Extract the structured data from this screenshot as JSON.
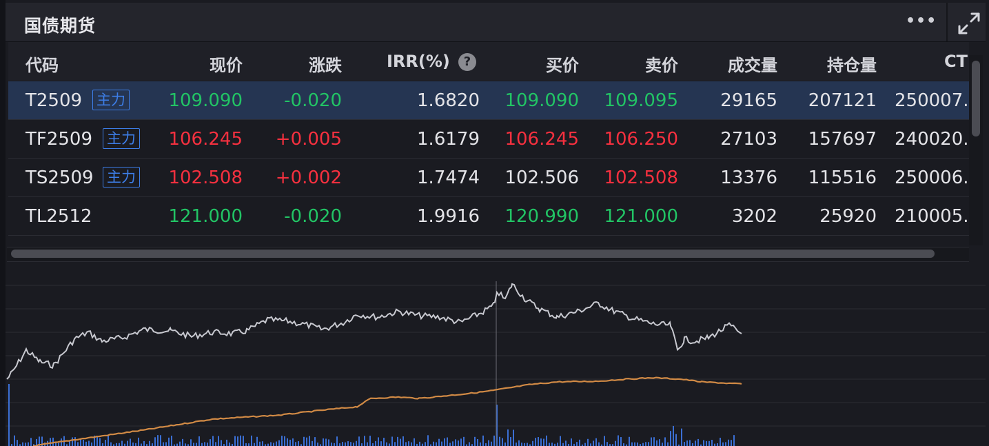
{
  "panel": {
    "title": "国债期货",
    "more_label": "•••"
  },
  "table": {
    "columns": {
      "code": "代码",
      "price": "现价",
      "change": "涨跌",
      "irr": "IRR(%)",
      "bid": "买价",
      "ask": "卖价",
      "volume": "成交量",
      "open_interest": "持仓量",
      "ctd": "CT"
    },
    "help_glyph": "?",
    "rows": [
      {
        "code": "T2509",
        "badge": "主力",
        "price": "109.090",
        "price_dir": "down",
        "change": "-0.020",
        "change_dir": "down",
        "irr": "1.6820",
        "bid": "109.090",
        "bid_dir": "down",
        "ask": "109.095",
        "ask_dir": "down",
        "volume": "29165",
        "open_interest": "207121",
        "ctd": "250007.",
        "selected": true
      },
      {
        "code": "TF2509",
        "badge": "主力",
        "price": "106.245",
        "price_dir": "up",
        "change": "+0.005",
        "change_dir": "up",
        "irr": "1.6179",
        "bid": "106.245",
        "bid_dir": "up",
        "ask": "106.250",
        "ask_dir": "up",
        "volume": "27103",
        "open_interest": "157697",
        "ctd": "240020.",
        "selected": false
      },
      {
        "code": "TS2509",
        "badge": "主力",
        "price": "102.508",
        "price_dir": "up",
        "change": "+0.002",
        "change_dir": "up",
        "irr": "1.7474",
        "bid": "102.506",
        "bid_dir": "neutral",
        "ask": "102.508",
        "ask_dir": "up",
        "volume": "13376",
        "open_interest": "115516",
        "ctd": "250006.",
        "selected": false
      },
      {
        "code": "TL2512",
        "badge": "",
        "price": "121.000",
        "price_dir": "down",
        "change": "-0.020",
        "change_dir": "down",
        "irr": "1.9916",
        "bid": "120.990",
        "bid_dir": "down",
        "ask": "121.000",
        "ask_dir": "down",
        "volume": "3202",
        "open_interest": "25920",
        "ctd": "210005.",
        "selected": false
      }
    ]
  },
  "colors": {
    "up": "#f6303f",
    "down": "#22c465",
    "badge": "#3d7ee8",
    "selected_row": "#253552",
    "price_line": "#c8c9d0",
    "avg_line": "#d18a45",
    "volume_bar": "#3b6fd4"
  },
  "icons": {
    "more": "more-dots-icon",
    "expand": "expand-arrows-icon",
    "help": "question-circle-icon"
  }
}
